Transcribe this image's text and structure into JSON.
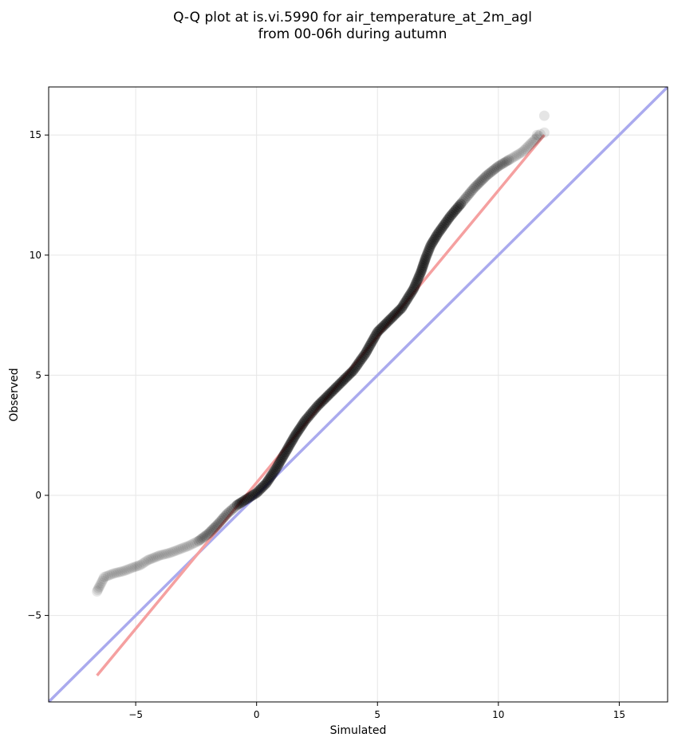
{
  "chart_data": {
    "type": "scatter",
    "title_line1": "Q-Q plot at is.vi.5990 for air_temperature_at_2m_agl",
    "title_line2": "from 00-06h during autumn",
    "xlabel": "Simulated",
    "ylabel": "Observed",
    "xlim": [
      -8.6,
      17
    ],
    "ylim": [
      -8.6,
      17
    ],
    "xticks": [
      -5,
      0,
      5,
      10,
      15
    ],
    "yticks": [
      -5,
      0,
      5,
      10,
      15
    ],
    "xtick_labels": [
      "−5",
      "0",
      "5",
      "10",
      "15"
    ],
    "ytick_labels": [
      "−5",
      "0",
      "5",
      "10",
      "15"
    ],
    "grid": true,
    "point_color": "#000000",
    "reference_line": {
      "color": "#aaaaee",
      "x": [
        -8.6,
        17
      ],
      "y": [
        -8.6,
        17
      ]
    },
    "fit_line": {
      "color": "#f5a0a0",
      "x": [
        -6.6,
        11.9
      ],
      "y": [
        -7.5,
        15.0
      ]
    },
    "quantile_curve": {
      "x": [
        -6.6,
        -6.5,
        -6.3,
        -5.9,
        -5.5,
        -5.1,
        -4.8,
        -4.5,
        -4.0,
        -3.6,
        -3.2,
        -2.8,
        -2.4,
        -2.0,
        -1.6,
        -1.2,
        -0.8,
        -0.4,
        0.0,
        0.4,
        0.8,
        1.2,
        1.6,
        2.0,
        2.5,
        3.0,
        3.5,
        4.0,
        4.5,
        5.0,
        5.5,
        6.0,
        6.5,
        6.8,
        7.0,
        7.2,
        7.5,
        8.0,
        8.5,
        9.0,
        9.5,
        10.0,
        10.5,
        11.0,
        11.3,
        11.6,
        11.8
      ],
      "y": [
        -4.0,
        -3.8,
        -3.4,
        -3.25,
        -3.15,
        -3.0,
        -2.9,
        -2.7,
        -2.5,
        -2.4,
        -2.25,
        -2.1,
        -1.9,
        -1.6,
        -1.2,
        -0.75,
        -0.4,
        -0.15,
        0.1,
        0.5,
        1.1,
        1.8,
        2.5,
        3.1,
        3.7,
        4.2,
        4.7,
        5.2,
        5.9,
        6.8,
        7.3,
        7.8,
        8.6,
        9.3,
        9.9,
        10.4,
        10.9,
        11.6,
        12.2,
        12.8,
        13.3,
        13.7,
        14.0,
        14.3,
        14.6,
        14.9,
        15.1
      ]
    },
    "outliers": [
      {
        "x": 11.9,
        "y": 15.8
      },
      {
        "x": 11.9,
        "y": 15.1
      },
      {
        "x": 11.6,
        "y": 15.0
      }
    ]
  }
}
